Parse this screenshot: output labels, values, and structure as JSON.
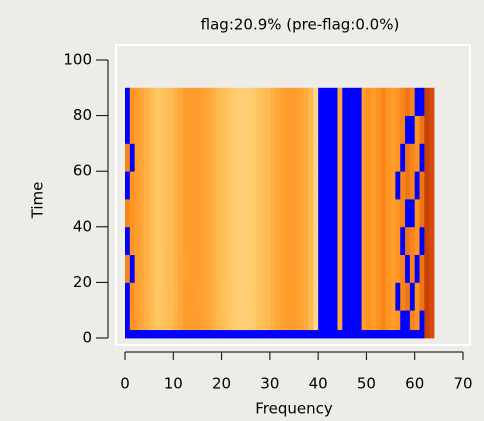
{
  "chart_data": {
    "type": "heatmap",
    "title": "flag:20.9% (pre-flag:0.0%)",
    "x_label": "Frequency",
    "y_label": "Time",
    "xlim": [
      0,
      70
    ],
    "xticks": [
      0,
      10,
      20,
      30,
      40,
      50,
      60,
      70
    ],
    "ylim": [
      0,
      100
    ],
    "yticks": [
      0,
      20,
      40,
      60,
      80,
      100
    ],
    "flag_color": "#0000ff",
    "colormap": [
      "#7a1e00",
      "#d84a08",
      "#ff9420",
      "#ffc560",
      "#fff0c8"
    ],
    "x_edges": [
      0,
      1,
      2,
      3,
      4,
      5,
      6,
      7,
      8,
      9,
      10,
      11,
      12,
      13,
      14,
      15,
      16,
      17,
      18,
      19,
      20,
      21,
      22,
      23,
      24,
      25,
      26,
      27,
      28,
      29,
      30,
      31,
      32,
      33,
      34,
      35,
      36,
      37,
      38,
      39,
      40,
      41,
      42,
      43,
      44,
      45,
      46,
      47,
      48,
      49,
      50,
      51,
      52,
      53,
      54,
      55,
      56,
      57,
      58,
      59,
      60,
      61,
      62,
      63,
      64
    ],
    "y_edges": [
      0,
      3,
      10,
      20,
      30,
      40,
      50,
      60,
      70,
      80,
      90
    ],
    "z": [
      [
        null,
        null,
        null,
        null,
        null,
        null,
        null,
        null,
        null,
        null,
        null,
        null,
        null,
        null,
        null,
        null,
        null,
        null,
        null,
        null,
        null,
        null,
        null,
        null,
        null,
        null,
        null,
        null,
        null,
        null,
        null,
        null,
        null,
        null,
        null,
        null,
        null,
        null,
        null,
        null,
        null,
        null,
        null,
        null,
        null,
        null,
        null,
        null,
        null,
        null,
        null,
        null,
        null,
        null,
        null,
        null,
        null,
        null,
        null,
        null,
        null,
        null,
        0.2,
        0.25
      ],
      [
        null,
        0.5,
        0.55,
        0.6,
        0.65,
        0.7,
        0.75,
        0.75,
        0.72,
        0.7,
        0.65,
        0.6,
        0.55,
        0.55,
        0.55,
        0.55,
        0.58,
        0.6,
        0.65,
        0.7,
        0.72,
        0.75,
        0.78,
        0.8,
        0.8,
        0.8,
        0.78,
        0.75,
        0.72,
        0.7,
        0.65,
        0.6,
        0.58,
        0.55,
        0.55,
        0.55,
        0.58,
        0.62,
        0.7,
        0.85,
        null,
        null,
        null,
        null,
        0.6,
        null,
        null,
        null,
        null,
        0.55,
        0.5,
        0.55,
        0.5,
        0.45,
        0.5,
        0.55,
        0.5,
        null,
        null,
        0.45,
        0.5,
        null,
        0.2,
        0.25
      ],
      [
        null,
        0.48,
        0.56,
        0.6,
        0.66,
        0.7,
        0.76,
        0.75,
        0.72,
        0.7,
        0.66,
        0.6,
        0.55,
        0.54,
        0.55,
        0.56,
        0.58,
        0.6,
        0.65,
        0.7,
        0.73,
        0.75,
        0.78,
        0.8,
        0.81,
        0.8,
        0.78,
        0.75,
        0.72,
        0.7,
        0.65,
        0.6,
        0.58,
        0.55,
        0.54,
        0.55,
        0.58,
        0.62,
        0.7,
        0.85,
        null,
        null,
        null,
        null,
        0.6,
        null,
        null,
        null,
        null,
        0.55,
        0.5,
        0.55,
        0.5,
        0.45,
        0.5,
        0.55,
        null,
        0.45,
        0.4,
        null,
        0.5,
        0.4,
        0.2,
        0.25
      ],
      [
        0.45,
        null,
        0.55,
        0.6,
        0.65,
        0.7,
        0.75,
        0.76,
        0.72,
        0.7,
        0.65,
        0.6,
        0.56,
        0.55,
        0.55,
        0.55,
        0.58,
        0.6,
        0.65,
        0.7,
        0.72,
        0.75,
        0.78,
        0.8,
        0.8,
        0.8,
        0.78,
        0.75,
        0.72,
        0.7,
        0.65,
        0.6,
        0.58,
        0.55,
        0.55,
        0.55,
        0.58,
        0.62,
        0.7,
        0.85,
        null,
        null,
        null,
        null,
        0.6,
        null,
        null,
        null,
        null,
        0.55,
        0.5,
        0.55,
        0.5,
        0.45,
        0.5,
        0.55,
        0.5,
        0.45,
        null,
        0.45,
        null,
        0.4,
        0.2,
        0.25
      ],
      [
        null,
        0.5,
        0.55,
        0.6,
        0.65,
        0.7,
        0.75,
        0.75,
        0.72,
        0.7,
        0.65,
        0.6,
        0.55,
        0.55,
        0.55,
        0.55,
        0.58,
        0.6,
        0.65,
        0.7,
        0.72,
        0.75,
        0.78,
        0.8,
        0.8,
        0.8,
        0.78,
        0.75,
        0.72,
        0.7,
        0.65,
        0.6,
        0.58,
        0.55,
        0.55,
        0.55,
        0.58,
        0.62,
        0.7,
        0.85,
        null,
        null,
        null,
        null,
        0.6,
        null,
        null,
        null,
        null,
        0.55,
        0.5,
        0.55,
        0.5,
        0.45,
        0.5,
        0.55,
        0.5,
        null,
        0.4,
        0.45,
        0.5,
        null,
        0.2,
        0.25
      ],
      [
        0.45,
        0.5,
        0.55,
        0.6,
        0.65,
        0.7,
        0.75,
        0.75,
        0.72,
        0.7,
        0.65,
        0.6,
        0.55,
        0.55,
        0.55,
        0.55,
        0.58,
        0.6,
        0.65,
        0.7,
        0.72,
        0.75,
        0.78,
        0.8,
        0.8,
        0.8,
        0.78,
        0.75,
        0.72,
        0.7,
        0.65,
        0.6,
        0.58,
        0.55,
        0.55,
        0.55,
        0.58,
        0.62,
        0.7,
        0.85,
        null,
        null,
        null,
        null,
        0.6,
        null,
        null,
        null,
        null,
        0.55,
        0.5,
        0.55,
        0.5,
        0.45,
        0.5,
        0.55,
        0.5,
        0.45,
        null,
        null,
        0.5,
        0.4,
        0.2,
        0.25
      ],
      [
        null,
        0.5,
        0.55,
        0.6,
        0.65,
        0.7,
        0.75,
        0.75,
        0.72,
        0.7,
        0.65,
        0.6,
        0.55,
        0.55,
        0.55,
        0.55,
        0.58,
        0.6,
        0.65,
        0.7,
        0.72,
        0.75,
        0.78,
        0.8,
        0.8,
        0.8,
        0.78,
        0.75,
        0.72,
        0.7,
        0.65,
        0.6,
        0.58,
        0.55,
        0.55,
        0.55,
        0.58,
        0.62,
        0.7,
        0.85,
        null,
        null,
        null,
        null,
        0.6,
        null,
        null,
        null,
        null,
        0.55,
        0.5,
        0.55,
        0.5,
        0.45,
        0.5,
        0.55,
        null,
        0.45,
        0.4,
        0.45,
        null,
        0.4,
        0.2,
        0.25
      ],
      [
        0.45,
        null,
        0.55,
        0.6,
        0.65,
        0.7,
        0.75,
        0.75,
        0.72,
        0.7,
        0.65,
        0.6,
        0.55,
        0.55,
        0.55,
        0.55,
        0.58,
        0.6,
        0.65,
        0.7,
        0.72,
        0.75,
        0.78,
        0.8,
        0.8,
        0.8,
        0.78,
        0.75,
        0.72,
        0.7,
        0.65,
        0.6,
        0.58,
        0.55,
        0.55,
        0.55,
        0.58,
        0.62,
        0.7,
        0.85,
        null,
        null,
        null,
        null,
        0.6,
        null,
        null,
        null,
        null,
        0.55,
        0.5,
        0.55,
        0.5,
        0.45,
        0.5,
        0.55,
        0.5,
        null,
        0.4,
        0.45,
        0.5,
        null,
        0.2,
        0.25
      ],
      [
        null,
        0.5,
        0.55,
        0.6,
        0.65,
        0.7,
        0.75,
        0.75,
        0.72,
        0.7,
        0.65,
        0.6,
        0.55,
        0.55,
        0.55,
        0.55,
        0.58,
        0.6,
        0.65,
        0.7,
        0.72,
        0.75,
        0.78,
        0.8,
        0.8,
        0.8,
        0.78,
        0.75,
        0.72,
        0.7,
        0.65,
        0.6,
        0.58,
        0.55,
        0.55,
        0.55,
        0.58,
        0.62,
        0.7,
        0.85,
        null,
        null,
        null,
        null,
        0.6,
        null,
        null,
        null,
        null,
        0.55,
        0.5,
        0.55,
        0.5,
        0.45,
        0.5,
        0.55,
        0.5,
        0.45,
        null,
        null,
        0.5,
        0.4,
        0.2,
        0.25
      ],
      [
        null,
        0.5,
        0.55,
        0.6,
        0.65,
        0.7,
        0.75,
        0.75,
        0.72,
        0.7,
        0.65,
        0.6,
        0.55,
        0.55,
        0.55,
        0.55,
        0.58,
        0.6,
        0.65,
        0.7,
        0.72,
        0.75,
        0.78,
        0.8,
        0.8,
        0.8,
        0.78,
        0.75,
        0.72,
        0.7,
        0.65,
        0.6,
        0.58,
        0.55,
        0.55,
        0.55,
        0.58,
        0.62,
        0.7,
        0.85,
        null,
        null,
        null,
        null,
        0.6,
        null,
        null,
        null,
        null,
        0.55,
        0.5,
        0.55,
        0.5,
        0.45,
        0.5,
        0.55,
        0.5,
        0.45,
        0.4,
        0.45,
        null,
        null,
        0.2,
        0.25
      ]
    ]
  }
}
